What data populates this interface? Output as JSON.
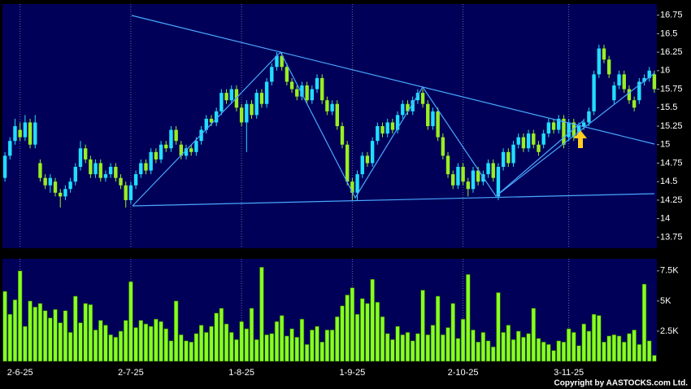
{
  "chart_data": [
    {
      "type": "candlestick",
      "categories": [
        null,
        null,
        null,
        "2-6-25",
        null,
        null,
        null,
        null,
        null,
        null,
        null,
        null,
        null,
        null,
        null,
        null,
        null,
        null,
        null,
        null,
        null,
        null,
        null,
        null,
        null,
        "2-7-25",
        null,
        null,
        null,
        null,
        null,
        null,
        null,
        null,
        null,
        null,
        null,
        null,
        null,
        null,
        null,
        null,
        null,
        null,
        null,
        null,
        null,
        "1-8-25",
        null,
        null,
        null,
        null,
        null,
        null,
        null,
        null,
        null,
        null,
        null,
        null,
        null,
        null,
        null,
        null,
        null,
        null,
        null,
        null,
        null,
        "1-9-25",
        null,
        null,
        null,
        null,
        null,
        null,
        null,
        null,
        null,
        null,
        null,
        null,
        null,
        null,
        null,
        null,
        null,
        null,
        null,
        null,
        null,
        "2-10-25",
        null,
        null,
        null,
        null,
        null,
        null,
        null,
        null,
        null,
        null,
        null,
        null,
        null,
        null,
        null,
        null,
        null,
        null,
        null,
        null,
        "3-11-25",
        null,
        null,
        null,
        null,
        null,
        null,
        null,
        null,
        null,
        null,
        null,
        null,
        null,
        null,
        null,
        null,
        null
      ],
      "open": [
        14.55,
        14.85,
        15.05,
        15.2,
        15.1,
        15.3,
        15.0,
        14.75,
        14.55,
        14.45,
        14.5,
        14.35,
        14.3,
        14.4,
        14.5,
        14.7,
        14.95,
        14.8,
        14.6,
        14.75,
        14.55,
        14.6,
        14.7,
        14.55,
        14.45,
        14.25,
        14.45,
        14.6,
        14.75,
        14.65,
        14.9,
        14.8,
        15.0,
        14.95,
        15.2,
        15.0,
        14.85,
        14.95,
        14.9,
        15.05,
        15.2,
        15.35,
        15.3,
        15.45,
        15.7,
        15.6,
        15.75,
        15.5,
        15.3,
        15.55,
        15.4,
        15.7,
        15.55,
        15.85,
        16.05,
        16.2,
        16.05,
        15.85,
        15.75,
        15.65,
        15.8,
        15.6,
        15.75,
        15.9,
        15.6,
        15.45,
        15.55,
        15.25,
        15.0,
        14.5,
        14.35,
        14.6,
        14.85,
        14.75,
        15.05,
        15.25,
        15.15,
        15.3,
        15.2,
        15.4,
        15.55,
        15.45,
        15.6,
        15.7,
        15.55,
        15.25,
        15.45,
        15.1,
        14.85,
        14.6,
        14.45,
        14.7,
        14.5,
        14.4,
        14.65,
        14.5,
        14.6,
        14.75,
        14.3,
        14.7,
        14.9,
        14.75,
        15.0,
        15.1,
        14.95,
        15.15,
        15.0,
        15.0,
        15.15,
        15.3,
        15.2,
        15.35,
        15.1,
        15.3,
        15.15,
        15.25,
        15.3,
        15.45,
        15.95,
        16.3,
        16.15,
        15.6,
        15.8,
        15.95,
        15.75,
        15.6,
        15.6,
        15.85,
        15.9,
        15.95
      ],
      "high": [
        14.9,
        15.1,
        15.35,
        15.3,
        15.4,
        15.35,
        15.4,
        14.8,
        14.6,
        14.6,
        14.55,
        14.4,
        14.45,
        14.55,
        14.75,
        15.05,
        15.0,
        14.85,
        14.8,
        14.8,
        14.65,
        14.75,
        14.75,
        14.6,
        14.5,
        14.5,
        14.65,
        14.8,
        14.8,
        14.95,
        14.95,
        15.05,
        15.05,
        15.25,
        15.25,
        15.05,
        15.0,
        15.0,
        15.1,
        15.25,
        15.4,
        15.4,
        15.5,
        15.75,
        15.75,
        15.8,
        15.8,
        15.55,
        15.6,
        15.6,
        15.75,
        15.75,
        15.9,
        16.1,
        16.25,
        16.25,
        16.1,
        15.9,
        15.8,
        15.85,
        15.85,
        15.8,
        15.95,
        15.95,
        15.65,
        15.6,
        15.6,
        15.3,
        15.05,
        14.55,
        14.65,
        14.9,
        14.9,
        15.1,
        15.3,
        15.3,
        15.35,
        15.35,
        15.45,
        15.6,
        15.6,
        15.65,
        15.75,
        15.75,
        15.6,
        15.5,
        15.5,
        15.15,
        14.9,
        14.65,
        14.75,
        14.75,
        14.55,
        14.7,
        14.7,
        14.65,
        14.8,
        14.8,
        14.75,
        14.95,
        14.95,
        15.05,
        15.15,
        15.15,
        15.2,
        15.2,
        15.05,
        15.2,
        15.35,
        15.35,
        15.4,
        15.4,
        15.35,
        15.35,
        15.3,
        15.35,
        15.5,
        16.0,
        16.35,
        16.35,
        16.2,
        15.85,
        16.0,
        16.0,
        15.8,
        15.65,
        15.9,
        15.95,
        16.05,
        16.0
      ],
      "low": [
        14.5,
        14.8,
        15.0,
        15.05,
        15.05,
        14.95,
        14.95,
        14.5,
        14.4,
        14.35,
        14.3,
        14.15,
        14.25,
        14.35,
        14.45,
        14.65,
        14.75,
        14.55,
        14.55,
        14.5,
        14.5,
        14.55,
        14.5,
        14.4,
        14.15,
        14.2,
        14.4,
        14.55,
        14.6,
        14.6,
        14.75,
        14.75,
        14.9,
        14.9,
        15.0,
        14.8,
        14.8,
        14.85,
        14.85,
        15.0,
        15.15,
        15.25,
        15.25,
        15.4,
        15.55,
        15.55,
        15.45,
        15.25,
        14.9,
        15.35,
        15.35,
        15.5,
        15.5,
        15.8,
        16.0,
        16.0,
        15.8,
        15.7,
        15.6,
        15.6,
        15.55,
        15.55,
        15.7,
        15.55,
        15.4,
        15.4,
        15.2,
        14.95,
        14.45,
        14.25,
        14.25,
        14.55,
        14.7,
        14.7,
        15.0,
        15.1,
        15.1,
        15.15,
        15.15,
        15.35,
        15.4,
        15.4,
        15.55,
        15.5,
        15.2,
        15.2,
        15.05,
        14.8,
        14.55,
        14.4,
        14.4,
        14.45,
        14.3,
        14.35,
        14.45,
        14.45,
        14.55,
        14.5,
        14.25,
        14.65,
        14.7,
        14.7,
        14.95,
        14.9,
        14.9,
        14.95,
        14.85,
        14.95,
        15.1,
        15.15,
        15.15,
        14.95,
        15.05,
        15.05,
        15.1,
        15.2,
        15.25,
        15.4,
        15.9,
        16.1,
        15.9,
        15.55,
        15.75,
        15.7,
        15.55,
        15.45,
        15.55,
        15.8,
        15.85,
        15.7
      ],
      "close": [
        14.85,
        15.05,
        15.25,
        15.1,
        15.3,
        15.0,
        15.3,
        14.55,
        14.45,
        14.55,
        14.35,
        14.3,
        14.4,
        14.5,
        14.7,
        14.95,
        14.8,
        14.6,
        14.75,
        14.55,
        14.6,
        14.7,
        14.55,
        14.45,
        14.25,
        14.45,
        14.6,
        14.75,
        14.65,
        14.9,
        14.8,
        15.0,
        14.95,
        15.2,
        15.05,
        14.85,
        14.95,
        14.9,
        15.05,
        15.2,
        15.35,
        15.3,
        15.45,
        15.7,
        15.6,
        15.75,
        15.5,
        15.3,
        15.55,
        15.4,
        15.7,
        15.55,
        15.85,
        16.05,
        16.2,
        16.05,
        15.85,
        15.75,
        15.65,
        15.8,
        15.6,
        15.75,
        15.9,
        15.6,
        15.45,
        15.55,
        15.25,
        15.0,
        14.5,
        14.35,
        14.6,
        14.85,
        14.75,
        15.05,
        15.25,
        15.15,
        15.3,
        15.2,
        15.4,
        15.55,
        15.45,
        15.6,
        15.7,
        15.55,
        15.25,
        15.45,
        15.1,
        14.85,
        14.6,
        14.45,
        14.7,
        14.5,
        14.4,
        14.65,
        14.5,
        14.6,
        14.75,
        14.55,
        14.7,
        14.9,
        14.75,
        15.0,
        15.1,
        14.95,
        15.15,
        15.0,
        14.9,
        15.15,
        15.3,
        15.2,
        15.35,
        15.0,
        15.3,
        15.1,
        15.25,
        15.3,
        15.45,
        15.95,
        16.3,
        16.15,
        15.95,
        15.8,
        15.95,
        15.75,
        15.6,
        15.5,
        15.85,
        15.9,
        16.0,
        15.75
      ],
      "up_color": "#22ddff",
      "down_color": "#99ee22",
      "ylim": [
        13.6,
        16.9
      ],
      "yticks": [
        13.75,
        14,
        14.25,
        14.5,
        14.75,
        15,
        15.25,
        15.5,
        15.75,
        16,
        16.25,
        16.5,
        16.75
      ],
      "xgrid": true
    },
    {
      "type": "bar",
      "values": [
        5800,
        3900,
        5100,
        7500,
        2900,
        5000,
        4500,
        4800,
        4200,
        3600,
        4300,
        3200,
        4200,
        2400,
        5400,
        3200,
        4800,
        4700,
        2600,
        3400,
        3000,
        2200,
        2000,
        2500,
        3400,
        6600,
        2800,
        3400,
        3100,
        2900,
        3500,
        3300,
        2700,
        1700,
        5000,
        2200,
        1700,
        1600,
        2300,
        3000,
        2400,
        2900,
        4000,
        4400,
        3100,
        2400,
        1800,
        3300,
        2700,
        4400,
        1800,
        7800,
        2200,
        2300,
        3300,
        3800,
        2100,
        2700,
        2000,
        3500,
        1400,
        2600,
        2900,
        1600,
        2600,
        2600,
        3700,
        4600,
        5500,
        6100,
        3900,
        5200,
        4800,
        6800,
        4900,
        3700,
        2300,
        1800,
        2900,
        2200,
        2400,
        1700,
        2300,
        5900,
        2200,
        3000,
        5400,
        2200,
        2800,
        4800,
        1900,
        3500,
        7200,
        2600,
        1600,
        2400,
        1700,
        1200,
        5700,
        2400,
        3000,
        1800,
        2500,
        2000,
        2300,
        4400,
        1900,
        1600,
        1400,
        900,
        1700,
        1600,
        2700,
        2400,
        1300,
        3100,
        2500,
        3900,
        3800,
        1600,
        2100,
        2200,
        2100,
        1600,
        2300,
        2600,
        1400,
        6400,
        1700,
        500
      ],
      "color": "#88ff22",
      "ylim": [
        0,
        8500
      ],
      "yticks": [
        {
          "value": 2500,
          "label": "2.5K"
        },
        {
          "value": 5000,
          "label": "5K"
        },
        {
          "value": 7500,
          "label": "7.5K"
        }
      ]
    }
  ],
  "copyright": "Copyright by AASTOCKS.com Ltd."
}
